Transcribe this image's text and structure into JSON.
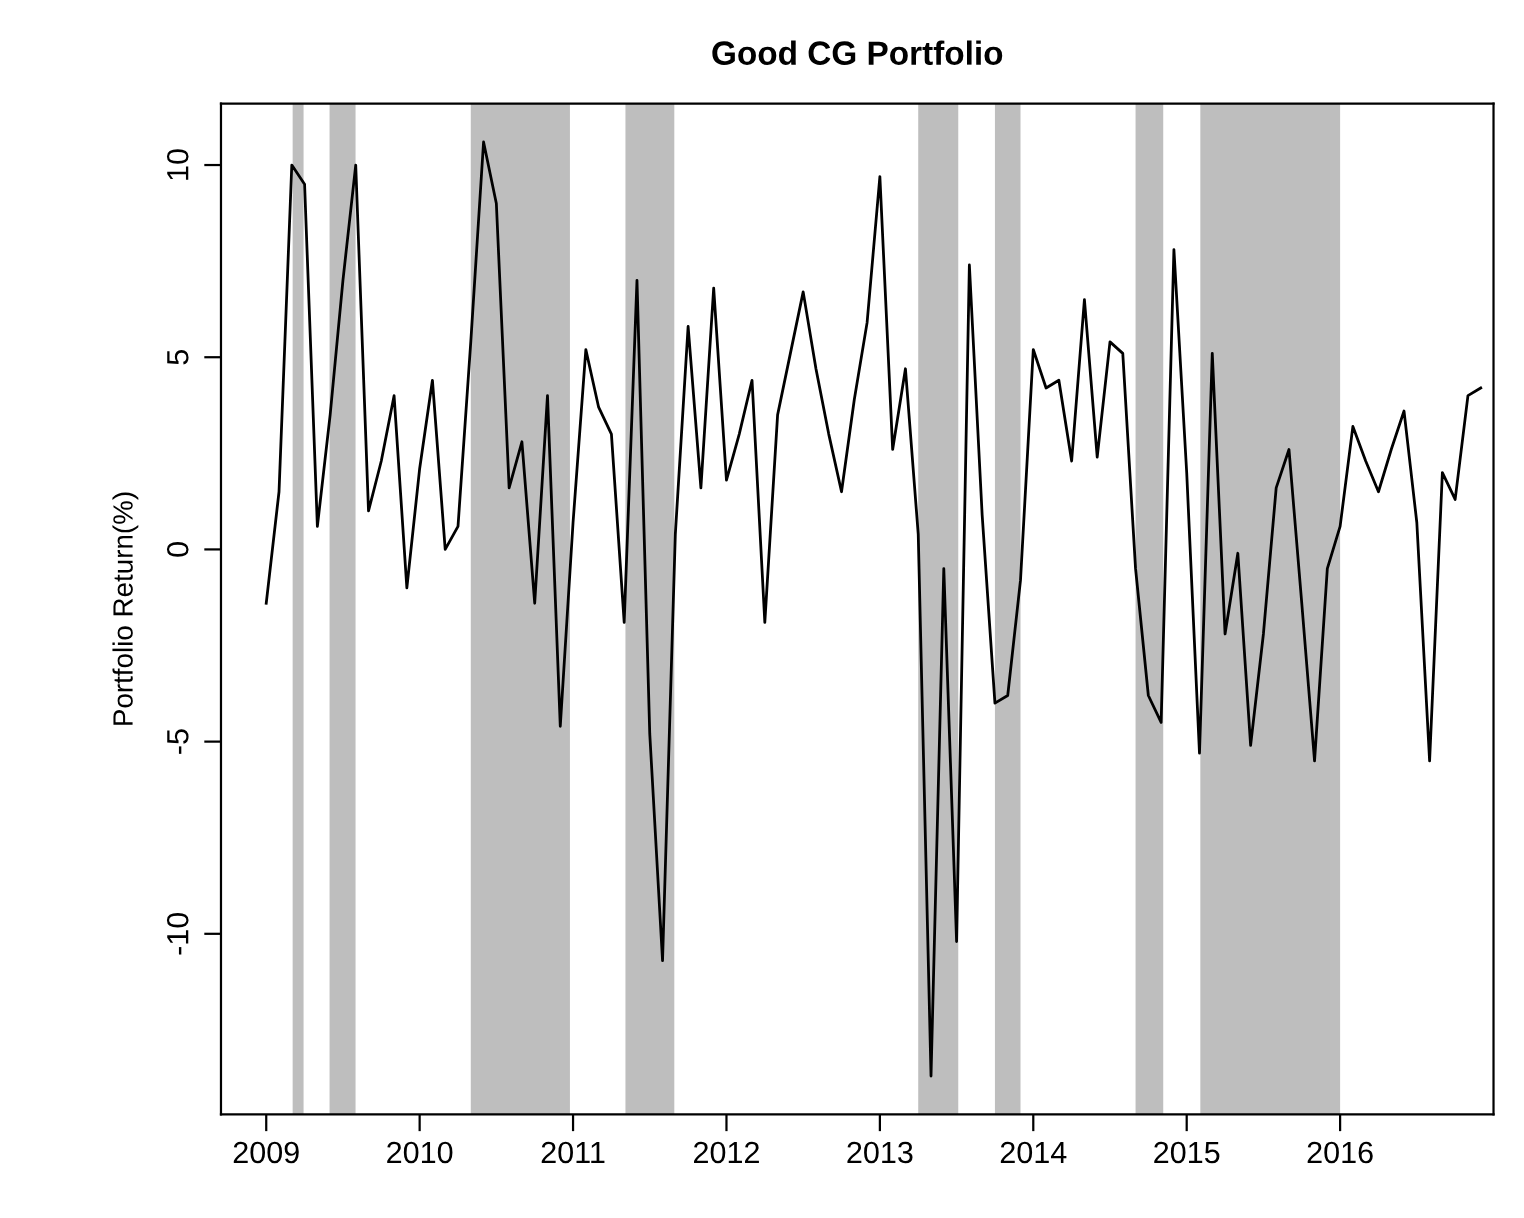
{
  "chart_data": {
    "type": "line",
    "title": "Good CG Portfolio",
    "ylabel": "Portfolio Return(%)",
    "x": [
      "2009-01",
      "2009-02",
      "2009-03",
      "2009-04",
      "2009-05",
      "2009-06",
      "2009-07",
      "2009-08",
      "2009-09",
      "2009-10",
      "2009-11",
      "2009-12",
      "2010-01",
      "2010-02",
      "2010-03",
      "2010-04",
      "2010-05",
      "2010-06",
      "2010-07",
      "2010-08",
      "2010-09",
      "2010-10",
      "2010-11",
      "2010-12",
      "2011-01",
      "2011-02",
      "2011-03",
      "2011-04",
      "2011-05",
      "2011-06",
      "2011-07",
      "2011-08",
      "2011-09",
      "2011-10",
      "2011-11",
      "2011-12",
      "2012-01",
      "2012-02",
      "2012-03",
      "2012-04",
      "2012-05",
      "2012-06",
      "2012-07",
      "2012-08",
      "2012-09",
      "2012-10",
      "2012-11",
      "2012-12",
      "2013-01",
      "2013-02",
      "2013-03",
      "2013-04",
      "2013-05",
      "2013-06",
      "2013-07",
      "2013-08",
      "2013-09",
      "2013-10",
      "2013-11",
      "2013-12",
      "2014-01",
      "2014-02",
      "2014-03",
      "2014-04",
      "2014-05",
      "2014-06",
      "2014-07",
      "2014-08",
      "2014-09",
      "2014-10",
      "2014-11",
      "2014-12",
      "2015-01",
      "2015-02",
      "2015-03",
      "2015-04",
      "2015-05",
      "2015-06",
      "2015-07",
      "2015-08",
      "2015-09",
      "2015-10",
      "2015-11",
      "2015-12",
      "2016-01",
      "2016-02",
      "2016-03",
      "2016-04",
      "2016-05",
      "2016-06",
      "2016-07",
      "2016-08",
      "2016-09",
      "2016-10",
      "2016-11",
      "2016-12"
    ],
    "series": [
      {
        "color": "#000000",
        "values": [
          -1.4,
          1.5,
          10.0,
          9.5,
          0.6,
          3.5,
          7.0,
          10.0,
          1.0,
          2.3,
          4.0,
          -1.0,
          2.1,
          4.4,
          0.0,
          0.6,
          5.4,
          10.6,
          9.0,
          1.6,
          2.8,
          -1.4,
          4.0,
          -4.6,
          0.7,
          5.2,
          3.7,
          3.0,
          -1.9,
          7.0,
          -4.8,
          -10.7,
          0.4,
          5.8,
          1.6,
          6.8,
          1.8,
          3.0,
          4.4,
          -1.9,
          3.5,
          5.1,
          6.7,
          4.7,
          3.0,
          1.5,
          3.9,
          5.9,
          9.7,
          2.6,
          4.7,
          0.4,
          -13.7,
          -0.5,
          -10.2,
          7.4,
          0.9,
          -4.0,
          -3.8,
          -0.8,
          5.2,
          4.2,
          4.4,
          2.3,
          6.5,
          2.4,
          5.4,
          5.1,
          -0.5,
          -3.8,
          -4.5,
          7.8,
          2.0,
          -5.3,
          5.1,
          -2.2,
          -0.1,
          -5.1,
          -2.2,
          1.6,
          2.6,
          -1.4,
          -5.5,
          -0.5,
          0.6,
          3.2,
          2.3,
          1.5,
          2.6,
          3.6,
          0.7,
          -5.5,
          2.0,
          1.3,
          4.0,
          4.2
        ]
      }
    ],
    "bands": [
      {
        "axis": "x",
        "from": "2009-03-03",
        "to": "2009-03-29",
        "color": "#bebebe"
      },
      {
        "axis": "x",
        "from": "2009-05-30",
        "to": "2009-07-31",
        "color": "#bebebe"
      },
      {
        "axis": "x",
        "from": "2010-05-01",
        "to": "2010-12-24",
        "color": "#bebebe"
      },
      {
        "axis": "x",
        "from": "2011-05-04",
        "to": "2011-08-29",
        "color": "#bebebe"
      },
      {
        "axis": "x",
        "from": "2013-04-01",
        "to": "2013-07-05",
        "color": "#bebebe"
      },
      {
        "axis": "x",
        "from": "2013-10-01",
        "to": "2013-12-01",
        "color": "#bebebe"
      },
      {
        "axis": "x",
        "from": "2014-09-01",
        "to": "2014-11-06",
        "color": "#bebebe"
      },
      {
        "axis": "x",
        "from": "2015-02-03",
        "to": "2016-01-01",
        "color": "#bebebe"
      }
    ],
    "xlim": [
      "2008-09-15",
      "2017-01-01"
    ],
    "xticks": [
      {
        "value": "2009-01-01",
        "label": "2009"
      },
      {
        "value": "2010-01-01",
        "label": "2010"
      },
      {
        "value": "2011-01-01",
        "label": "2011"
      },
      {
        "value": "2012-01-01",
        "label": "2012"
      },
      {
        "value": "2013-01-01",
        "label": "2013"
      },
      {
        "value": "2014-01-01",
        "label": "2014"
      },
      {
        "value": "2015-01-01",
        "label": "2015"
      },
      {
        "value": "2016-01-01",
        "label": "2016"
      }
    ],
    "ylim": [
      -14.7,
      11.6
    ],
    "yticks": [
      -10,
      -5,
      0,
      5,
      10
    ],
    "grid": false,
    "marker": "none",
    "line_style": "solid"
  }
}
